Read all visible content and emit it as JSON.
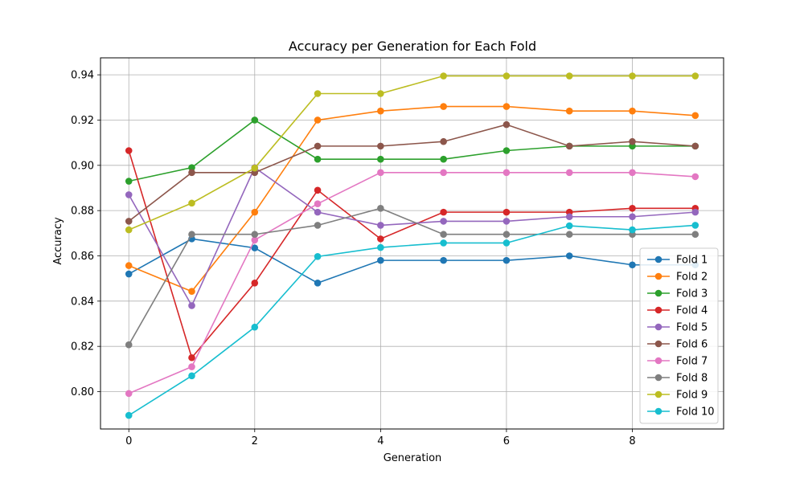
{
  "chart_data": {
    "type": "line",
    "title": "Accuracy per Generation for Each Fold",
    "xlabel": "Generation",
    "ylabel": "Accuracy",
    "x": [
      0,
      1,
      2,
      3,
      4,
      5,
      6,
      7,
      8,
      9
    ],
    "xlim": [
      -0.45,
      9.45
    ],
    "ylim": [
      0.7835,
      0.9475
    ],
    "xticks": [
      0,
      2,
      4,
      6,
      8
    ],
    "yticks": [
      0.8,
      0.82,
      0.84,
      0.86,
      0.88,
      0.9,
      0.92,
      0.94
    ],
    "grid": true,
    "legend_position": "lower-right",
    "series": [
      {
        "name": "Fold 1",
        "color": "#1f77b4",
        "values": [
          0.852,
          0.8675,
          0.8635,
          0.848,
          0.858,
          0.858,
          0.858,
          0.86,
          0.856,
          0.856
        ]
      },
      {
        "name": "Fold 2",
        "color": "#ff7f0e",
        "values": [
          0.8557,
          0.8443,
          0.8793,
          0.92,
          0.924,
          0.926,
          0.926,
          0.924,
          0.924,
          0.922
        ]
      },
      {
        "name": "Fold 3",
        "color": "#2ca02c",
        "values": [
          0.893,
          0.899,
          0.92,
          0.9027,
          0.9027,
          0.9027,
          0.9065,
          0.9085,
          0.9085,
          0.9085
        ]
      },
      {
        "name": "Fold 4",
        "color": "#d62728",
        "values": [
          0.9065,
          0.815,
          0.848,
          0.889,
          0.8675,
          0.8793,
          0.8793,
          0.8793,
          0.881,
          0.881
        ]
      },
      {
        "name": "Fold 5",
        "color": "#9467bd",
        "values": [
          0.887,
          0.838,
          0.899,
          0.8793,
          0.8735,
          0.8753,
          0.8753,
          0.8773,
          0.8773,
          0.8793
        ]
      },
      {
        "name": "Fold 6",
        "color": "#8c564b",
        "values": [
          0.8753,
          0.8968,
          0.8968,
          0.9085,
          0.9085,
          0.9105,
          0.918,
          0.9085,
          0.9105,
          0.9085
        ]
      },
      {
        "name": "Fold 7",
        "color": "#e377c2",
        "values": [
          0.7992,
          0.811,
          0.867,
          0.883,
          0.8968,
          0.8968,
          0.8968,
          0.8968,
          0.8968,
          0.895
        ]
      },
      {
        "name": "Fold 8",
        "color": "#7f7f7f",
        "values": [
          0.8207,
          0.8695,
          0.8695,
          0.8735,
          0.881,
          0.8695,
          0.8695,
          0.8695,
          0.8695,
          0.8695
        ]
      },
      {
        "name": "Fold 9",
        "color": "#bcbd22",
        "values": [
          0.8715,
          0.8833,
          0.8988,
          0.9317,
          0.9317,
          0.9395,
          0.9395,
          0.9395,
          0.9395,
          0.9395
        ]
      },
      {
        "name": "Fold 10",
        "color": "#17becf",
        "values": [
          0.7895,
          0.807,
          0.8285,
          0.8597,
          0.8637,
          0.8657,
          0.8657,
          0.8733,
          0.8715,
          0.8735
        ]
      }
    ]
  }
}
